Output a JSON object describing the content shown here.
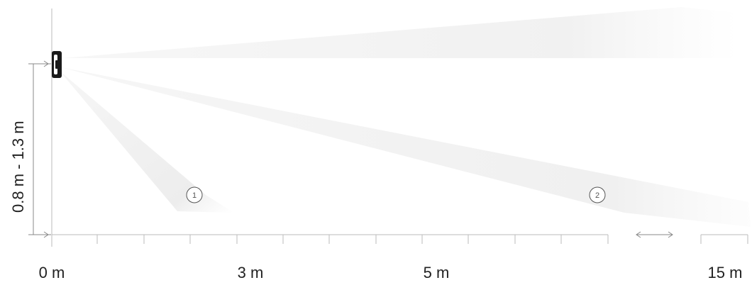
{
  "colors": {
    "line": "#bbbbbb",
    "line_dark": "#888888",
    "beam": "#eeeeee",
    "text": "#222222",
    "device": "#1a1a1a"
  },
  "height": {
    "label": "0.8 m - 1.3 m"
  },
  "distance_axis": {
    "labels": [
      "0 m",
      "3 m",
      "5 m",
      "15 m"
    ]
  },
  "zones": [
    {
      "number": "1"
    },
    {
      "number": "2"
    }
  ],
  "icons": {
    "device": "motion-detector-icon",
    "gap": "double-arrow-icon"
  }
}
